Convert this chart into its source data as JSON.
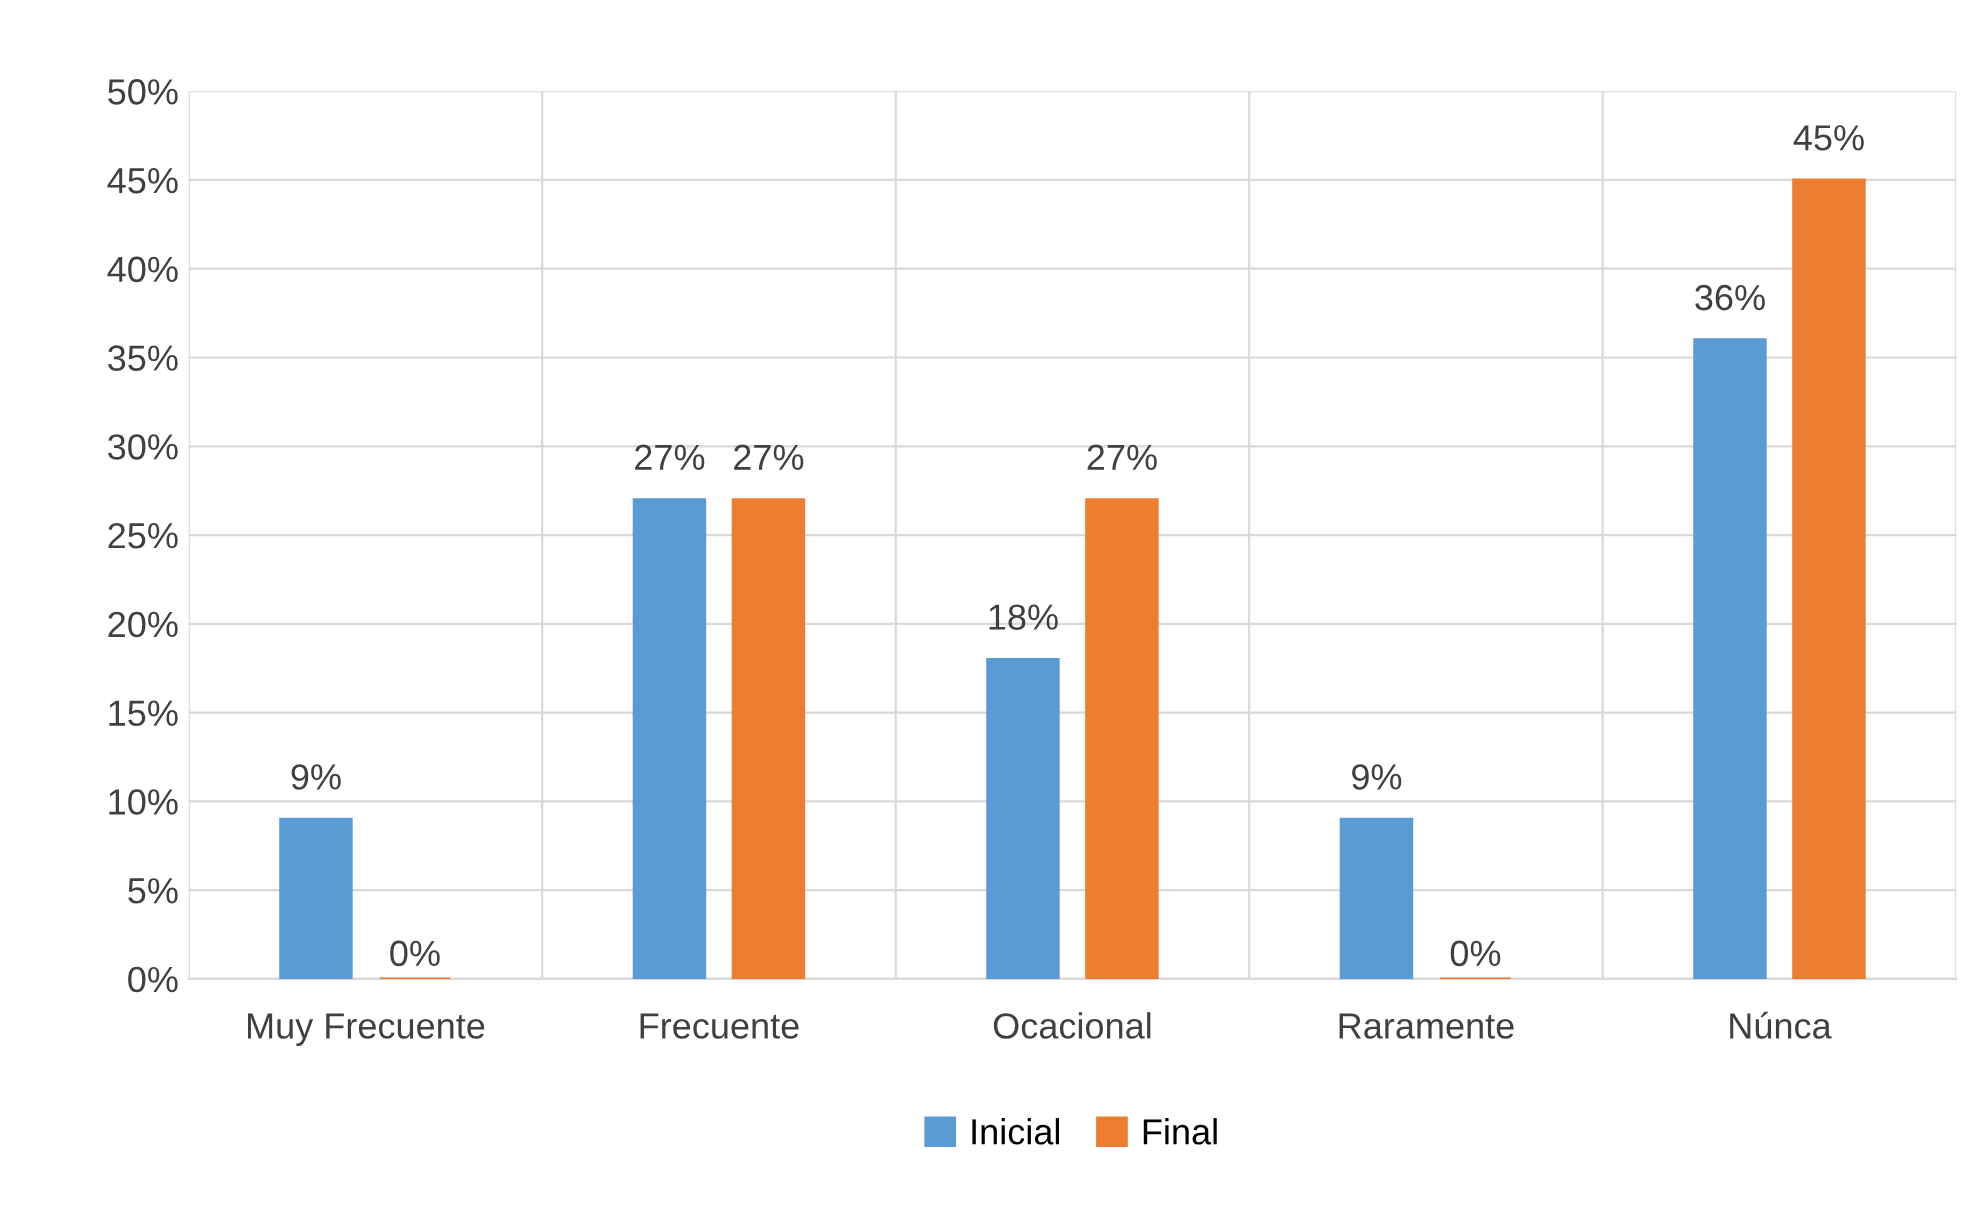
{
  "chart_data": {
    "type": "bar",
    "categories": [
      "Muy Frecuente",
      "Frecuente",
      "Ocacional",
      "Raramente",
      "Núnca"
    ],
    "series": [
      {
        "name": "Inicial",
        "color": "#5b9bd5",
        "values": [
          9,
          27,
          18,
          9,
          36
        ],
        "value_labels": [
          "9%",
          "27%",
          "18%",
          "9%",
          "36%"
        ]
      },
      {
        "name": "Final",
        "color": "#ed7d31",
        "values": [
          0,
          27,
          27,
          0,
          45
        ],
        "value_labels": [
          "0%",
          "27%",
          "27%",
          "0%",
          "45%"
        ]
      }
    ],
    "ylim": [
      0,
      50
    ],
    "yticks": [
      {
        "value": 0,
        "label": "0%"
      },
      {
        "value": 5,
        "label": "5%"
      },
      {
        "value": 10,
        "label": "10%"
      },
      {
        "value": 15,
        "label": "15%"
      },
      {
        "value": 20,
        "label": "20%"
      },
      {
        "value": 25,
        "label": "25%"
      },
      {
        "value": 30,
        "label": "30%"
      },
      {
        "value": 35,
        "label": "35%"
      },
      {
        "value": 40,
        "label": "40%"
      },
      {
        "value": 45,
        "label": "45%"
      },
      {
        "value": 50,
        "label": "50%"
      }
    ],
    "grid": true,
    "legend": "bottom"
  }
}
